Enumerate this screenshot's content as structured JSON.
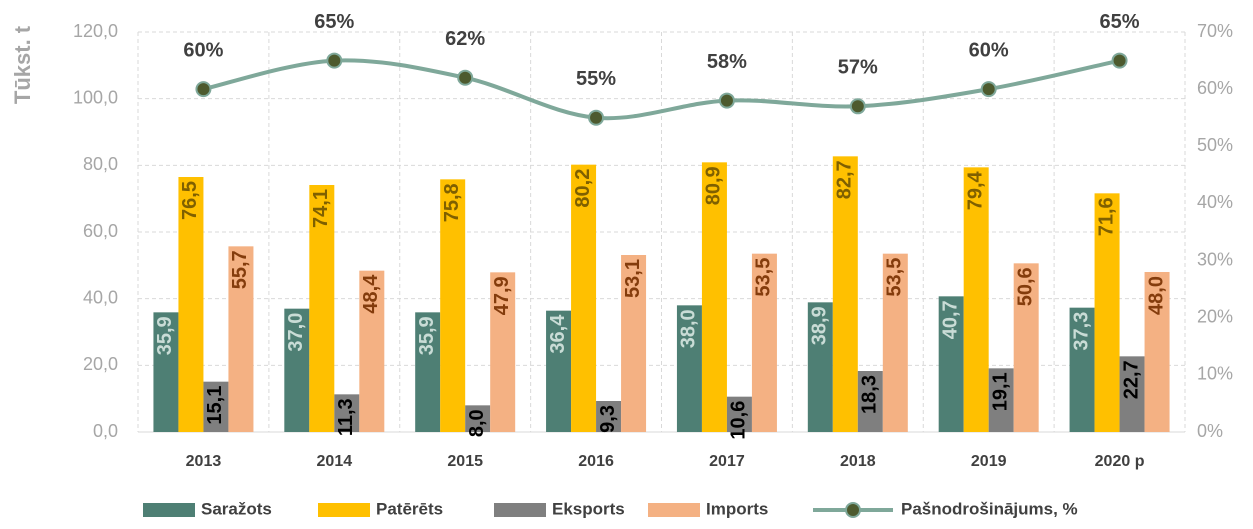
{
  "chart_data": {
    "type": "bar_line",
    "y_label": "Tūkst. t",
    "categories": [
      "2013",
      "2014",
      "2015",
      "2016",
      "2017",
      "2018",
      "2019",
      "2020 p"
    ],
    "ylim": [
      0,
      120
    ],
    "yticks": [
      {
        "value": 0,
        "label": "0,0"
      },
      {
        "value": 20,
        "label": "20,0"
      },
      {
        "value": 40,
        "label": "40,0"
      },
      {
        "value": 60,
        "label": "60,0"
      },
      {
        "value": 80,
        "label": "80,0"
      },
      {
        "value": 100,
        "label": "100,0"
      },
      {
        "value": 120,
        "label": "120,0"
      }
    ],
    "y2lim": [
      0,
      70
    ],
    "y2ticks": [
      {
        "value": 0,
        "label": "0%"
      },
      {
        "value": 10,
        "label": "10%"
      },
      {
        "value": 20,
        "label": "20%"
      },
      {
        "value": 30,
        "label": "30%"
      },
      {
        "value": 40,
        "label": "40%"
      },
      {
        "value": 50,
        "label": "50%"
      },
      {
        "value": 60,
        "label": "60%"
      },
      {
        "value": 70,
        "label": "70%"
      }
    ],
    "grid": true,
    "legend": "bottom",
    "series": [
      {
        "name": "Saražots",
        "type": "bar",
        "color": "#4e7f74",
        "values": [
          35.9,
          37.0,
          35.9,
          36.4,
          38.0,
          38.9,
          40.7,
          37.3
        ],
        "value_labels": [
          "35,9",
          "37,0",
          "35,9",
          "36,4",
          "38,0",
          "38,9",
          "40,7",
          "37,3"
        ]
      },
      {
        "name": "Patērēts",
        "type": "bar",
        "color": "#ffc000",
        "values": [
          76.5,
          74.1,
          75.8,
          80.2,
          80.9,
          82.7,
          79.4,
          71.6
        ],
        "value_labels": [
          "76,5",
          "74,1",
          "75,8",
          "80,2",
          "80,9",
          "82,7",
          "79,4",
          "71,6"
        ]
      },
      {
        "name": "Eksports",
        "type": "bar",
        "color": "#7f7f7f",
        "values": [
          15.1,
          11.3,
          8.0,
          9.3,
          10.6,
          18.3,
          19.1,
          22.7
        ],
        "value_labels": [
          "15,1",
          "11,3",
          "8,0",
          "9,3",
          "10,6",
          "18,3",
          "19,1",
          "22,7"
        ]
      },
      {
        "name": "Imports",
        "type": "bar",
        "color": "#f4b183",
        "values": [
          55.7,
          48.4,
          47.9,
          53.1,
          53.5,
          53.5,
          50.6,
          48.0
        ],
        "value_labels": [
          "55,7",
          "48,4",
          "47,9",
          "53,1",
          "53,5",
          "53,5",
          "50,6",
          "48,0"
        ]
      },
      {
        "name": "Pašnodrošinājums, %",
        "type": "line",
        "axis": "y2",
        "color": "#7fa89a",
        "marker_color": "#4d5a2e",
        "values": [
          60,
          65,
          62,
          55,
          58,
          57,
          60,
          65
        ],
        "value_labels": [
          "60%",
          "65%",
          "62%",
          "55%",
          "58%",
          "57%",
          "60%",
          "65%"
        ]
      }
    ]
  }
}
